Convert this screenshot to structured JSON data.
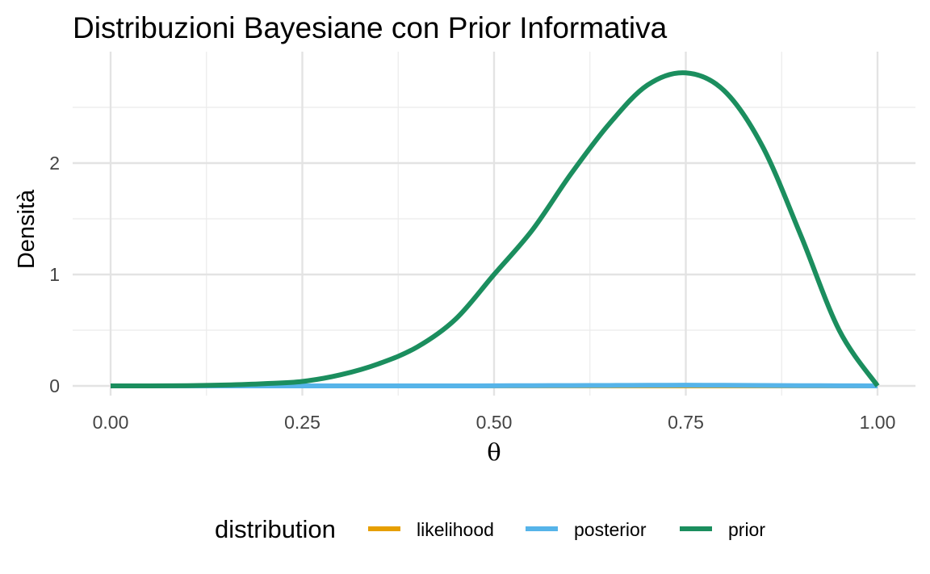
{
  "chart_data": {
    "type": "line",
    "title": "Distribuzioni Bayesiane con Prior Informativa",
    "xlabel": "θ",
    "ylabel": "Densità",
    "xlim": [
      0,
      1
    ],
    "ylim": [
      0,
      2.8
    ],
    "x_ticks": [
      "0.00",
      "0.25",
      "0.50",
      "0.75",
      "1.00"
    ],
    "y_ticks": [
      "0",
      "1",
      "2"
    ],
    "grid": true,
    "legend": {
      "title": "distribution",
      "position": "bottom",
      "entries": [
        "likelihood",
        "posterior",
        "prior"
      ]
    },
    "series": [
      {
        "name": "likelihood",
        "color": "#E69F00",
        "x": [
          0,
          0.05,
          0.1,
          0.15,
          0.2,
          0.25,
          0.3,
          0.35,
          0.4,
          0.45,
          0.5,
          0.55,
          0.6,
          0.65,
          0.7,
          0.75,
          0.8,
          0.85,
          0.9,
          0.95,
          1.0
        ],
        "values": [
          0,
          0,
          0,
          0,
          0,
          0,
          0,
          0,
          0,
          0,
          0,
          0,
          0,
          0,
          0,
          0,
          0,
          0,
          0,
          0,
          0
        ]
      },
      {
        "name": "posterior",
        "color": "#56B4E9",
        "x": [
          0,
          0.05,
          0.1,
          0.15,
          0.2,
          0.25,
          0.3,
          0.35,
          0.4,
          0.45,
          0.5,
          0.55,
          0.6,
          0.65,
          0.7,
          0.75,
          0.8,
          0.85,
          0.9,
          0.95,
          1.0
        ],
        "values": [
          0,
          0,
          0,
          0,
          0,
          0,
          0,
          0,
          0,
          0,
          0.001,
          0.002,
          0.003,
          0.004,
          0.005,
          0.006,
          0.005,
          0.004,
          0.002,
          0.001,
          0
        ]
      },
      {
        "name": "prior",
        "color": "#1B8E5E",
        "x": [
          0,
          0.05,
          0.1,
          0.15,
          0.2,
          0.25,
          0.3,
          0.35,
          0.4,
          0.45,
          0.5,
          0.55,
          0.6,
          0.65,
          0.7,
          0.75,
          0.8,
          0.85,
          0.9,
          0.95,
          1.0
        ],
        "values": [
          0,
          0.0001,
          0.002,
          0.008,
          0.02,
          0.04,
          0.1,
          0.2,
          0.35,
          0.6,
          1.0,
          1.4,
          1.9,
          2.35,
          2.7,
          2.81,
          2.65,
          2.15,
          1.35,
          0.5,
          0
        ]
      }
    ]
  }
}
